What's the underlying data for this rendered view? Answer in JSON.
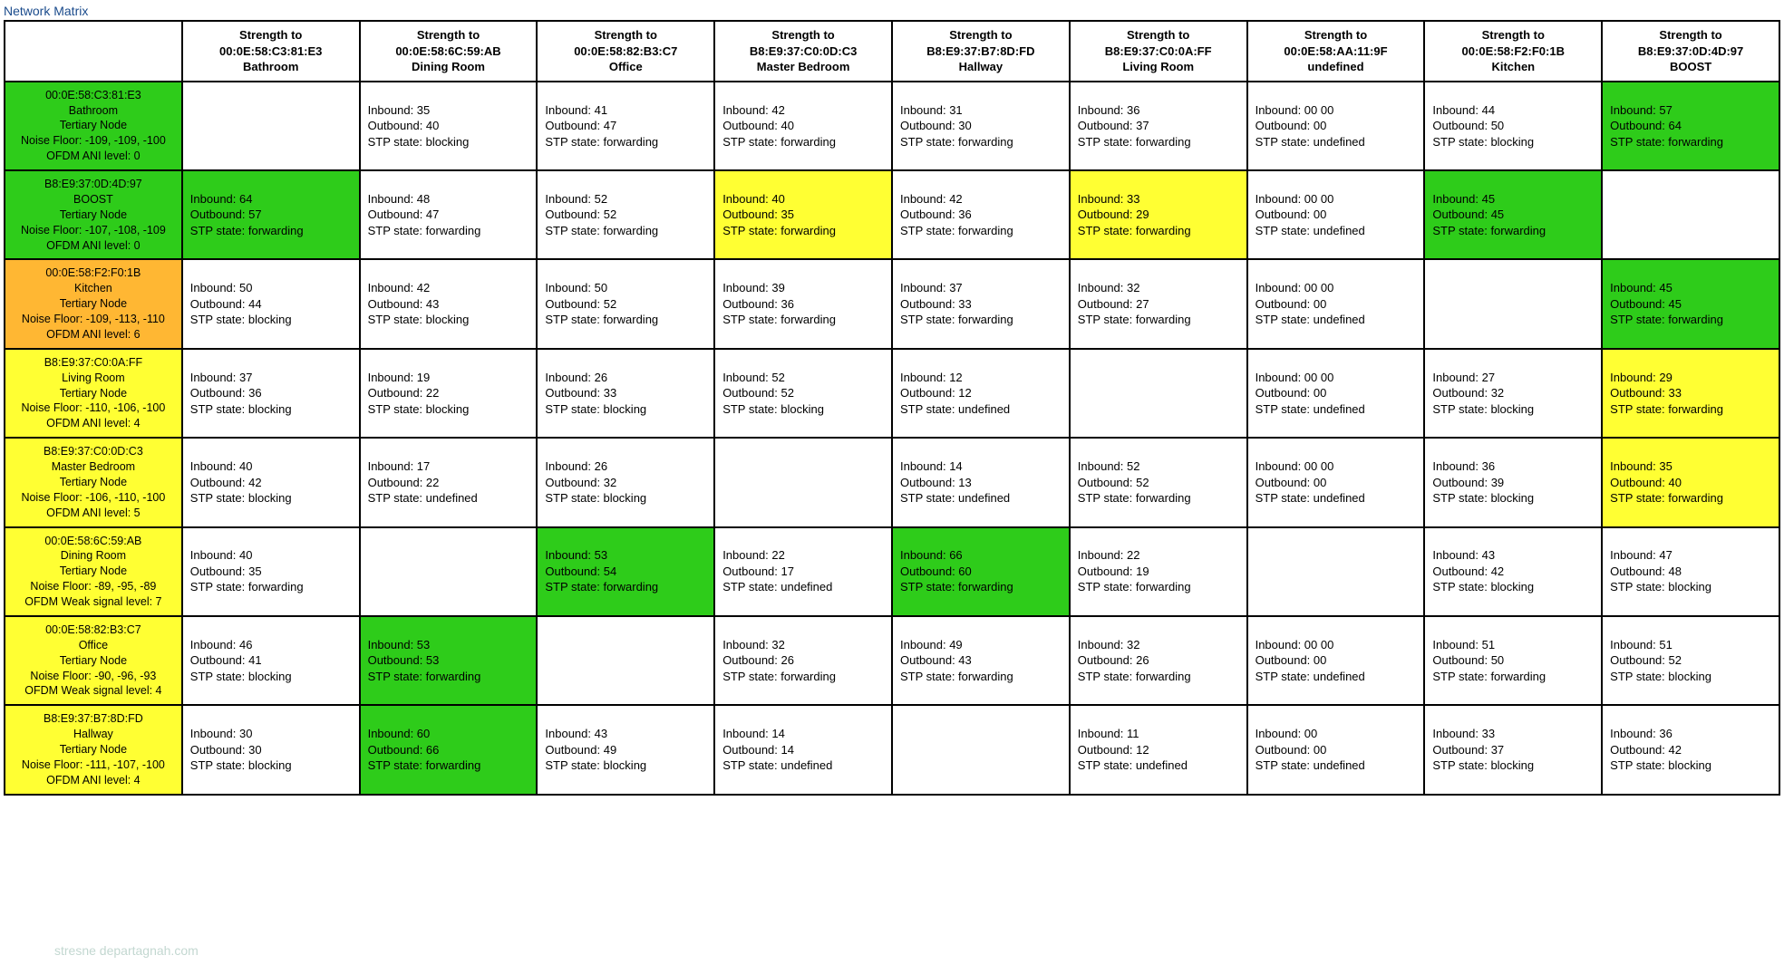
{
  "title": "Network Matrix",
  "colors": {
    "green": "#2ecc1a",
    "yellow": "#ffff33",
    "orange": "#ffb733",
    "white": "#ffffff",
    "border": "#000000",
    "title": "#1a4b8c"
  },
  "columns": [
    {
      "label_top": "Strength to",
      "mac": "00:0E:58:C3:81:E3",
      "loc": "Bathroom"
    },
    {
      "label_top": "Strength to",
      "mac": "00:0E:58:6C:59:AB",
      "loc": "Dining Room"
    },
    {
      "label_top": "Strength to",
      "mac": "00:0E:58:82:B3:C7",
      "loc": "Office"
    },
    {
      "label_top": "Strength to",
      "mac": "B8:E9:37:C0:0D:C3",
      "loc": "Master Bedroom"
    },
    {
      "label_top": "Strength to",
      "mac": "B8:E9:37:B7:8D:FD",
      "loc": "Hallway"
    },
    {
      "label_top": "Strength to",
      "mac": "B8:E9:37:C0:0A:FF",
      "loc": "Living Room"
    },
    {
      "label_top": "Strength to",
      "mac": "00:0E:58:AA:11:9F",
      "loc": "undefined"
    },
    {
      "label_top": "Strength to",
      "mac": "00:0E:58:F2:F0:1B",
      "loc": "Kitchen"
    },
    {
      "label_top": "Strength to",
      "mac": "B8:E9:37:0D:4D:97",
      "loc": "BOOST"
    }
  ],
  "rows": [
    {
      "hdr": {
        "bg": "green",
        "mac": "00:0E:58:C3:81:E3",
        "loc": "Bathroom",
        "type": "Tertiary Node",
        "noise": "Noise Floor: -109, -109, -100",
        "ofdm": "OFDM ANI level: 0"
      },
      "cells": [
        null,
        {
          "bg": "white",
          "in": "Inbound: 35",
          "out": "Outbound: 40",
          "stp": "STP state: blocking"
        },
        {
          "bg": "white",
          "in": "Inbound: 41",
          "out": "Outbound: 47",
          "stp": "STP state: forwarding"
        },
        {
          "bg": "white",
          "in": "Inbound: 42",
          "out": "Outbound: 40",
          "stp": "STP state: forwarding"
        },
        {
          "bg": "white",
          "in": "Inbound: 31",
          "out": "Outbound: 30",
          "stp": "STP state: forwarding"
        },
        {
          "bg": "white",
          "in": "Inbound: 36",
          "out": "Outbound: 37",
          "stp": "STP state: forwarding"
        },
        {
          "bg": "white",
          "in": "Inbound: 00 00",
          "out": "Outbound: 00",
          "stp": "STP state: undefined"
        },
        {
          "bg": "white",
          "in": "Inbound: 44",
          "out": "Outbound: 50",
          "stp": "STP state: blocking"
        },
        {
          "bg": "green",
          "in": "Inbound: 57",
          "out": "Outbound: 64",
          "stp": "STP state: forwarding"
        }
      ]
    },
    {
      "hdr": {
        "bg": "green",
        "mac": "B8:E9:37:0D:4D:97",
        "loc": "BOOST",
        "type": "Tertiary Node",
        "noise": "Noise Floor: -107, -108, -109",
        "ofdm": "OFDM ANI level: 0"
      },
      "cells": [
        {
          "bg": "green",
          "in": "Inbound: 64",
          "out": "Outbound: 57",
          "stp": "STP state: forwarding"
        },
        {
          "bg": "white",
          "in": "Inbound: 48",
          "out": "Outbound: 47",
          "stp": "STP state: forwarding"
        },
        {
          "bg": "white",
          "in": "Inbound: 52",
          "out": "Outbound: 52",
          "stp": "STP state: forwarding"
        },
        {
          "bg": "yellow",
          "in": "Inbound: 40",
          "out": "Outbound: 35",
          "stp": "STP state: forwarding"
        },
        {
          "bg": "white",
          "in": "Inbound: 42",
          "out": "Outbound: 36",
          "stp": "STP state: forwarding"
        },
        {
          "bg": "yellow",
          "in": "Inbound: 33",
          "out": "Outbound: 29",
          "stp": "STP state: forwarding"
        },
        {
          "bg": "white",
          "in": "Inbound: 00 00",
          "out": "Outbound: 00",
          "stp": "STP state: undefined"
        },
        {
          "bg": "green",
          "in": "Inbound: 45",
          "out": "Outbound: 45",
          "stp": "STP state: forwarding"
        },
        null
      ]
    },
    {
      "hdr": {
        "bg": "orange",
        "mac": "00:0E:58:F2:F0:1B",
        "loc": "Kitchen",
        "type": "Tertiary Node",
        "noise": "Noise Floor: -109, -113, -110",
        "ofdm": "OFDM ANI level: 6"
      },
      "cells": [
        {
          "bg": "white",
          "in": "Inbound: 50",
          "out": "Outbound: 44",
          "stp": "STP state: blocking"
        },
        {
          "bg": "white",
          "in": "Inbound: 42",
          "out": "Outbound: 43",
          "stp": "STP state: blocking"
        },
        {
          "bg": "white",
          "in": "Inbound: 50",
          "out": "Outbound: 52",
          "stp": "STP state: forwarding"
        },
        {
          "bg": "white",
          "in": "Inbound: 39",
          "out": "Outbound: 36",
          "stp": "STP state: forwarding"
        },
        {
          "bg": "white",
          "in": "Inbound: 37",
          "out": "Outbound: 33",
          "stp": "STP state: forwarding"
        },
        {
          "bg": "white",
          "in": "Inbound: 32",
          "out": "Outbound: 27",
          "stp": "STP state: forwarding"
        },
        {
          "bg": "white",
          "in": "Inbound: 00 00",
          "out": "Outbound: 00",
          "stp": "STP state: undefined"
        },
        null,
        {
          "bg": "green",
          "in": "Inbound: 45",
          "out": "Outbound: 45",
          "stp": "STP state: forwarding"
        }
      ]
    },
    {
      "hdr": {
        "bg": "yellow",
        "mac": "B8:E9:37:C0:0A:FF",
        "loc": "Living Room",
        "type": "Tertiary Node",
        "noise": "Noise Floor: -110, -106, -100",
        "ofdm": "OFDM ANI level: 4"
      },
      "cells": [
        {
          "bg": "white",
          "in": "Inbound: 37",
          "out": "Outbound: 36",
          "stp": "STP state: blocking"
        },
        {
          "bg": "white",
          "in": "Inbound: 19",
          "out": "Outbound: 22",
          "stp": "STP state: blocking"
        },
        {
          "bg": "white",
          "in": "Inbound: 26",
          "out": "Outbound: 33",
          "stp": "STP state: blocking"
        },
        {
          "bg": "white",
          "in": "Inbound: 52",
          "out": "Outbound: 52",
          "stp": "STP state: blocking"
        },
        {
          "bg": "white",
          "in": "Inbound: 12",
          "out": "Outbound: 12",
          "stp": "STP state: undefined"
        },
        null,
        {
          "bg": "white",
          "in": "Inbound: 00 00",
          "out": "Outbound: 00",
          "stp": "STP state: undefined"
        },
        {
          "bg": "white",
          "in": "Inbound: 27",
          "out": "Outbound: 32",
          "stp": "STP state: blocking"
        },
        {
          "bg": "yellow",
          "in": "Inbound: 29",
          "out": "Outbound: 33",
          "stp": "STP state: forwarding"
        }
      ]
    },
    {
      "hdr": {
        "bg": "yellow",
        "mac": "B8:E9:37:C0:0D:C3",
        "loc": "Master Bedroom",
        "type": "Tertiary Node",
        "noise": "Noise Floor: -106, -110, -100",
        "ofdm": "OFDM ANI level: 5"
      },
      "cells": [
        {
          "bg": "white",
          "in": "Inbound: 40",
          "out": "Outbound: 42",
          "stp": "STP state: blocking"
        },
        {
          "bg": "white",
          "in": "Inbound: 17",
          "out": "Outbound: 22",
          "stp": "STP state: undefined"
        },
        {
          "bg": "white",
          "in": "Inbound: 26",
          "out": "Outbound: 32",
          "stp": "STP state: blocking"
        },
        null,
        {
          "bg": "white",
          "in": "Inbound: 14",
          "out": "Outbound: 13",
          "stp": "STP state: undefined"
        },
        {
          "bg": "white",
          "in": "Inbound: 52",
          "out": "Outbound: 52",
          "stp": "STP state: forwarding"
        },
        {
          "bg": "white",
          "in": "Inbound: 00 00",
          "out": "Outbound: 00",
          "stp": "STP state: undefined"
        },
        {
          "bg": "white",
          "in": "Inbound: 36",
          "out": "Outbound: 39",
          "stp": "STP state: blocking"
        },
        {
          "bg": "yellow",
          "in": "Inbound: 35",
          "out": "Outbound: 40",
          "stp": "STP state: forwarding"
        }
      ]
    },
    {
      "hdr": {
        "bg": "yellow",
        "mac": "00:0E:58:6C:59:AB",
        "loc": "Dining Room",
        "type": "Tertiary Node",
        "noise": "Noise Floor: -89, -95, -89",
        "ofdm": "OFDM Weak signal level: 7"
      },
      "cells": [
        {
          "bg": "white",
          "in": "Inbound: 40",
          "out": "Outbound: 35",
          "stp": "STP state: forwarding"
        },
        null,
        {
          "bg": "green",
          "in": "Inbound: 53",
          "out": "Outbound: 54",
          "stp": "STP state: forwarding"
        },
        {
          "bg": "white",
          "in": "Inbound: 22",
          "out": "Outbound: 17",
          "stp": "STP state: undefined"
        },
        {
          "bg": "green",
          "in": "Inbound: 66",
          "out": "Outbound: 60",
          "stp": "STP state: forwarding"
        },
        {
          "bg": "white",
          "in": "Inbound: 22",
          "out": "Outbound: 19",
          "stp": "STP state: forwarding"
        },
        null,
        {
          "bg": "white",
          "in": "Inbound: 43",
          "out": "Outbound: 42",
          "stp": "STP state: blocking"
        },
        {
          "bg": "white",
          "in": "Inbound: 47",
          "out": "Outbound: 48",
          "stp": "STP state: blocking"
        }
      ]
    },
    {
      "hdr": {
        "bg": "yellow",
        "mac": "00:0E:58:82:B3:C7",
        "loc": "Office",
        "type": "Tertiary Node",
        "noise": "Noise Floor: -90, -96, -93",
        "ofdm": "OFDM Weak signal level: 4"
      },
      "cells": [
        {
          "bg": "white",
          "in": "Inbound: 46",
          "out": "Outbound: 41",
          "stp": "STP state: blocking"
        },
        {
          "bg": "green",
          "in": "Inbound: 53",
          "out": "Outbound: 53",
          "stp": "STP state: forwarding"
        },
        null,
        {
          "bg": "white",
          "in": "Inbound: 32",
          "out": "Outbound: 26",
          "stp": "STP state: forwarding"
        },
        {
          "bg": "white",
          "in": "Inbound: 49",
          "out": "Outbound: 43",
          "stp": "STP state: forwarding"
        },
        {
          "bg": "white",
          "in": "Inbound: 32",
          "out": "Outbound: 26",
          "stp": "STP state: forwarding"
        },
        {
          "bg": "white",
          "in": "Inbound: 00 00",
          "out": "Outbound: 00",
          "stp": "STP state: undefined"
        },
        {
          "bg": "white",
          "in": "Inbound: 51",
          "out": "Outbound: 50",
          "stp": "STP state: forwarding"
        },
        {
          "bg": "white",
          "in": "Inbound: 51",
          "out": "Outbound: 52",
          "stp": "STP state: blocking"
        }
      ]
    },
    {
      "hdr": {
        "bg": "yellow",
        "mac": "B8:E9:37:B7:8D:FD",
        "loc": "Hallway",
        "type": "Tertiary Node",
        "noise": "Noise Floor: -111, -107, -100",
        "ofdm": "OFDM ANI level: 4"
      },
      "cells": [
        {
          "bg": "white",
          "in": "Inbound: 30",
          "out": "Outbound: 30",
          "stp": "STP state: blocking"
        },
        {
          "bg": "green",
          "in": "Inbound: 60",
          "out": "Outbound: 66",
          "stp": "STP state: forwarding"
        },
        {
          "bg": "white",
          "in": "Inbound: 43",
          "out": "Outbound: 49",
          "stp": "STP state: blocking"
        },
        {
          "bg": "white",
          "in": "Inbound: 14",
          "out": "Outbound: 14",
          "stp": "STP state: undefined"
        },
        null,
        {
          "bg": "white",
          "in": "Inbound: 11",
          "out": "Outbound: 12",
          "stp": "STP state: undefined"
        },
        {
          "bg": "white",
          "in": "Inbound: 00",
          "out": "Outbound: 00",
          "stp": "STP state: undefined"
        },
        {
          "bg": "white",
          "in": "Inbound: 33",
          "out": "Outbound: 37",
          "stp": "STP state: blocking"
        },
        {
          "bg": "white",
          "in": "Inbound: 36",
          "out": "Outbound: 42",
          "stp": "STP state: blocking"
        }
      ]
    }
  ],
  "watermark": "stresne departagnah.com"
}
